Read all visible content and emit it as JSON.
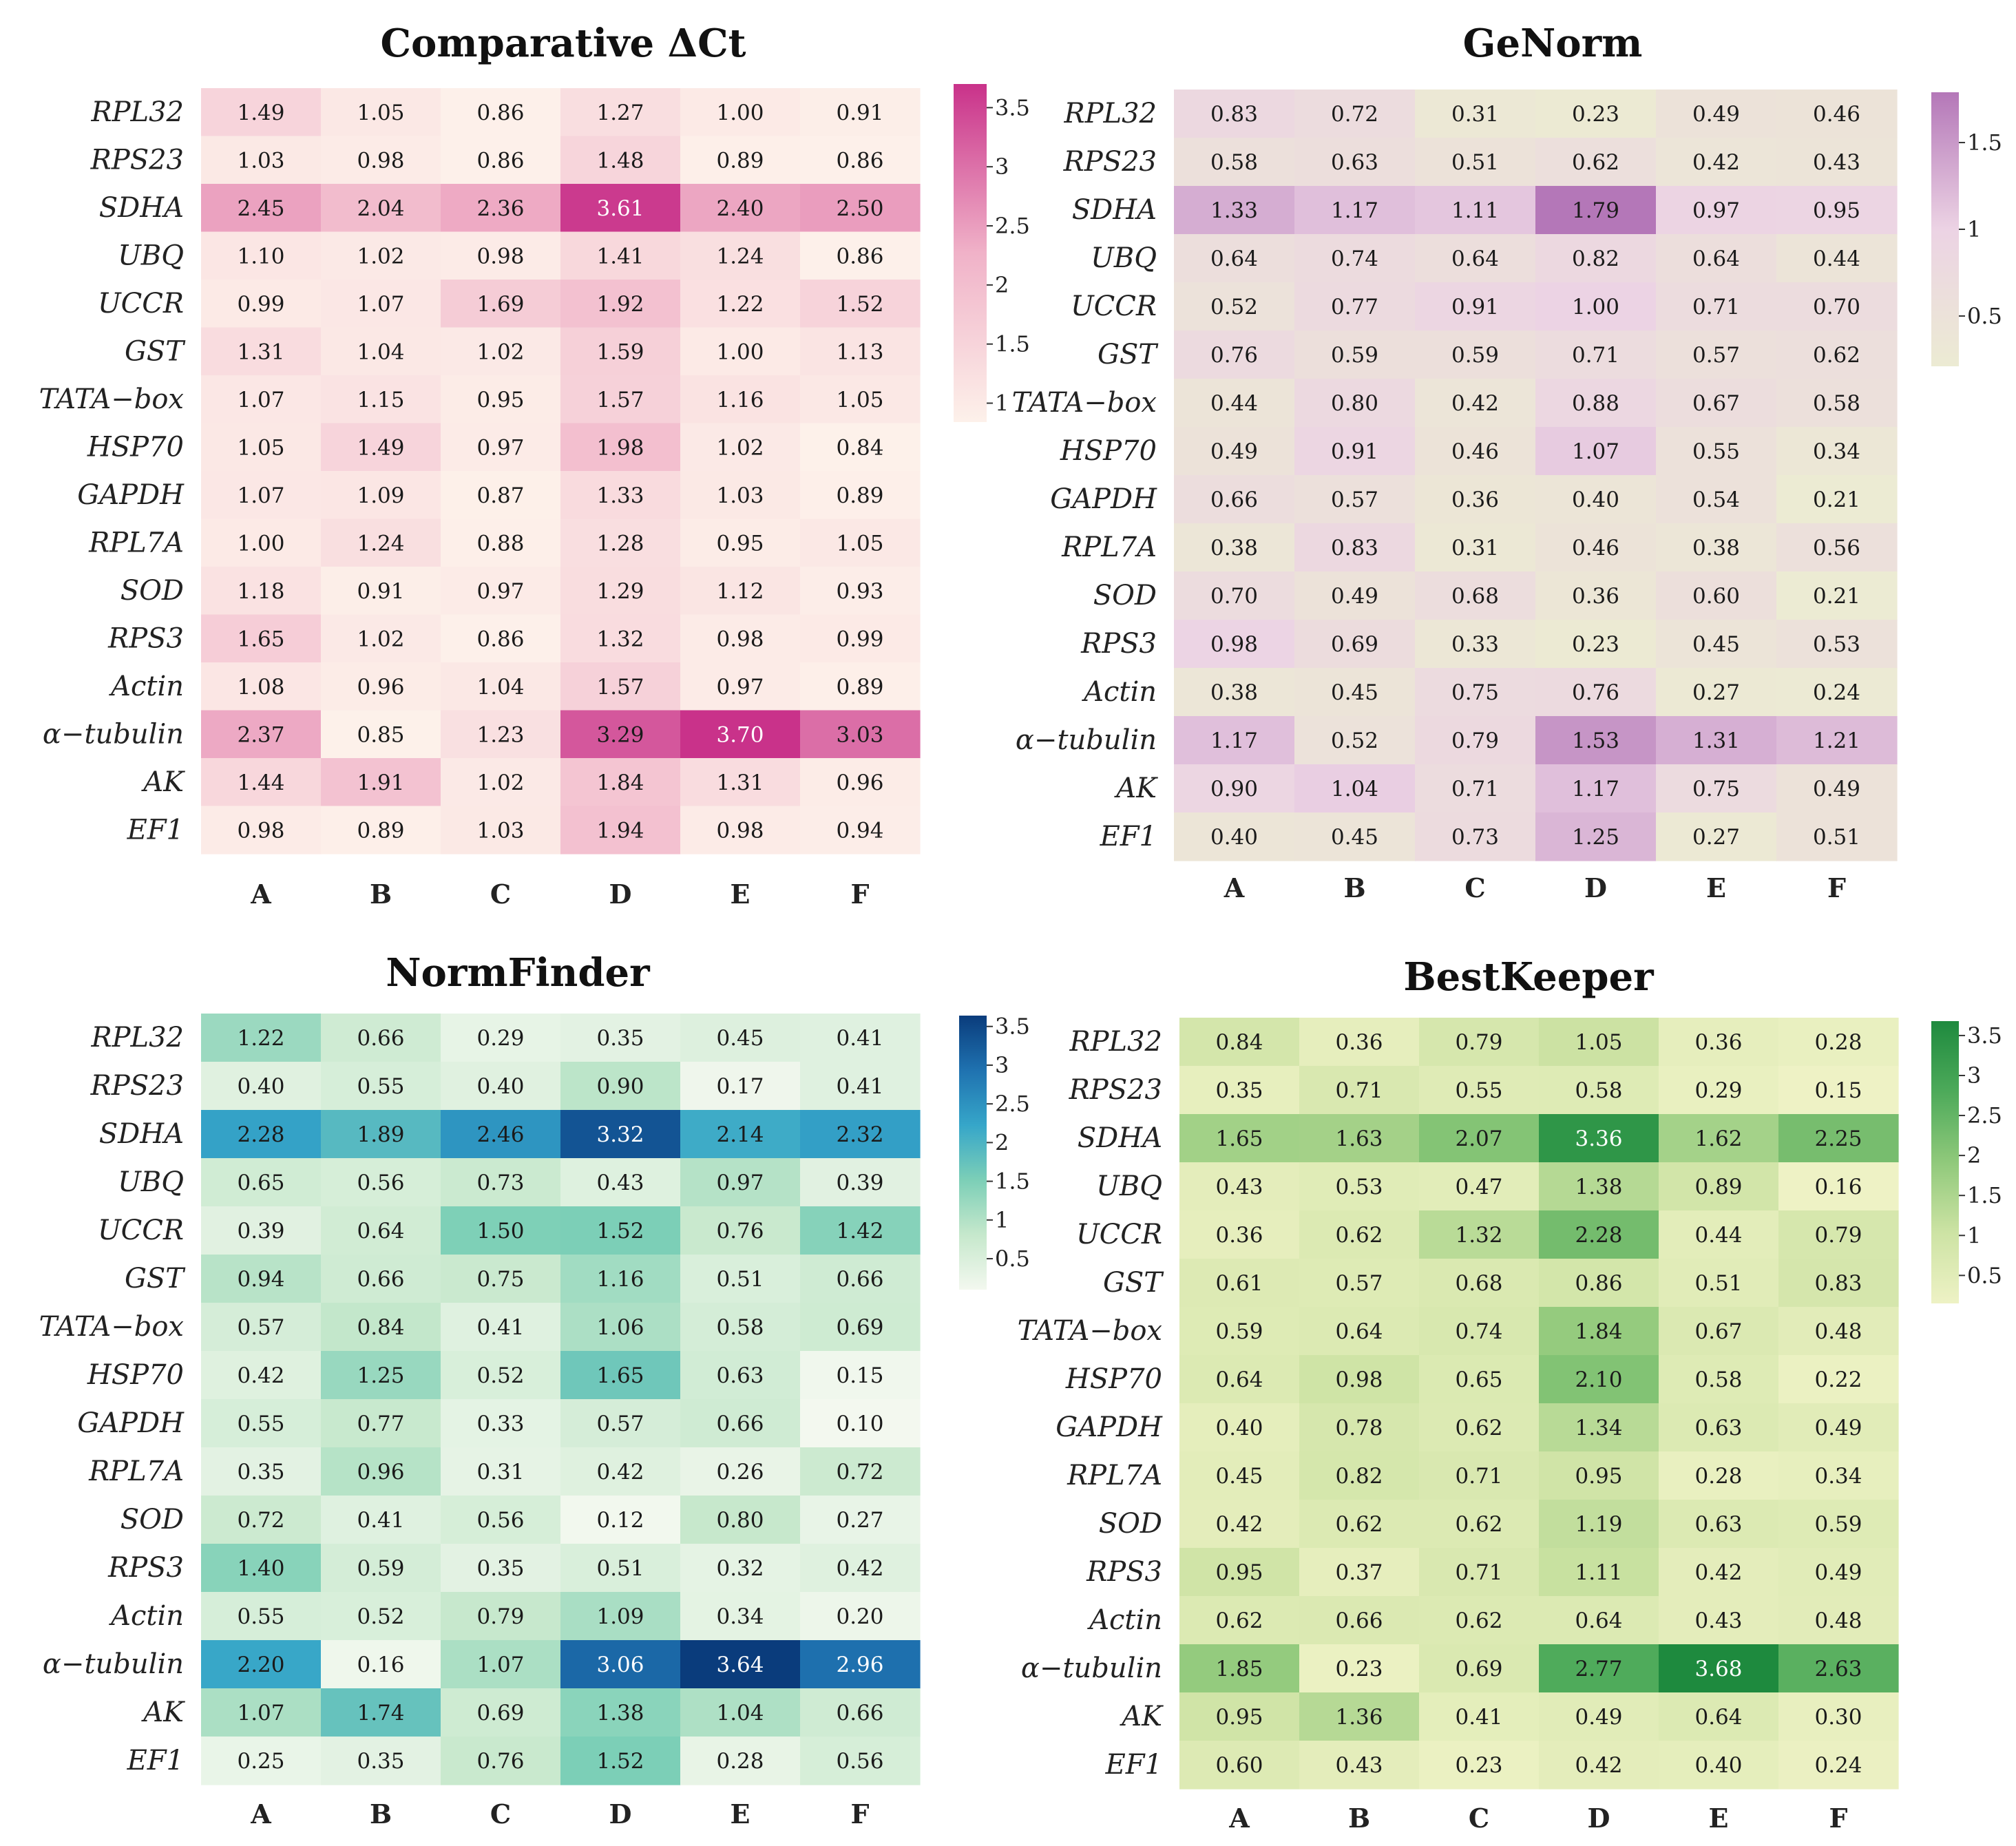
{
  "chart_data": [
    {
      "type": "heatmap",
      "title": "Comparative ΔCt",
      "columns": [
        "A",
        "B",
        "C",
        "D",
        "E",
        "F"
      ],
      "rows": [
        "RPL32",
        "RPS23",
        "SDHA",
        "UBQ",
        "UCCR",
        "GST",
        "TATA−box",
        "HSP70",
        "GAPDH",
        "RPL7A",
        "SOD",
        "RPS3",
        "Actin",
        "α−tubulin",
        "AK",
        "EF1"
      ],
      "values": [
        [
          1.49,
          1.05,
          0.86,
          1.27,
          1.0,
          0.91
        ],
        [
          1.03,
          0.98,
          0.86,
          1.48,
          0.89,
          0.86
        ],
        [
          2.45,
          2.04,
          2.36,
          3.61,
          2.4,
          2.5
        ],
        [
          1.1,
          1.02,
          0.98,
          1.41,
          1.24,
          0.86
        ],
        [
          0.99,
          1.07,
          1.69,
          1.92,
          1.22,
          1.52
        ],
        [
          1.31,
          1.04,
          1.02,
          1.59,
          1.0,
          1.13
        ],
        [
          1.07,
          1.15,
          0.95,
          1.57,
          1.16,
          1.05
        ],
        [
          1.05,
          1.49,
          0.97,
          1.98,
          1.02,
          0.84
        ],
        [
          1.07,
          1.09,
          0.87,
          1.33,
          1.03,
          0.89
        ],
        [
          1.0,
          1.24,
          0.88,
          1.28,
          0.95,
          1.05
        ],
        [
          1.18,
          0.91,
          0.97,
          1.29,
          1.12,
          0.93
        ],
        [
          1.65,
          1.02,
          0.86,
          1.32,
          0.98,
          0.99
        ],
        [
          1.08,
          0.96,
          1.04,
          1.57,
          0.97,
          0.89
        ],
        [
          2.37,
          0.85,
          1.23,
          3.29,
          3.7,
          3.03
        ],
        [
          1.44,
          1.91,
          1.02,
          1.84,
          1.31,
          0.96
        ],
        [
          0.98,
          0.89,
          1.03,
          1.94,
          0.98,
          0.94
        ]
      ],
      "vmin": 0.84,
      "vmax": 3.7,
      "colorbar_ticks": [
        "1",
        "1.5",
        "2",
        "2.5",
        "3",
        "3.5"
      ],
      "colorbar_tick_values": [
        1,
        1.5,
        2,
        2.5,
        3,
        3.5
      ],
      "colors": [
        "#fdf1ea",
        "#f0b2c8",
        "#c9328a"
      ]
    },
    {
      "type": "heatmap",
      "title": "GeNorm",
      "columns": [
        "A",
        "B",
        "C",
        "D",
        "E",
        "F"
      ],
      "rows": [
        "RPL32",
        "RPS23",
        "SDHA",
        "UBQ",
        "UCCR",
        "GST",
        "TATA−box",
        "HSP70",
        "GAPDH",
        "RPL7A",
        "SOD",
        "RPS3",
        "Actin",
        "α−tubulin",
        "AK",
        "EF1"
      ],
      "values": [
        [
          0.83,
          0.72,
          0.31,
          0.23,
          0.49,
          0.46
        ],
        [
          0.58,
          0.63,
          0.51,
          0.62,
          0.42,
          0.43
        ],
        [
          1.33,
          1.17,
          1.11,
          1.79,
          0.97,
          0.95
        ],
        [
          0.64,
          0.74,
          0.64,
          0.82,
          0.64,
          0.44
        ],
        [
          0.52,
          0.77,
          0.91,
          1.0,
          0.71,
          0.7
        ],
        [
          0.76,
          0.59,
          0.59,
          0.71,
          0.57,
          0.62
        ],
        [
          0.44,
          0.8,
          0.42,
          0.88,
          0.67,
          0.58
        ],
        [
          0.49,
          0.91,
          0.46,
          1.07,
          0.55,
          0.34
        ],
        [
          0.66,
          0.57,
          0.36,
          0.4,
          0.54,
          0.21
        ],
        [
          0.38,
          0.83,
          0.31,
          0.46,
          0.38,
          0.56
        ],
        [
          0.7,
          0.49,
          0.68,
          0.36,
          0.6,
          0.21
        ],
        [
          0.98,
          0.69,
          0.33,
          0.23,
          0.45,
          0.53
        ],
        [
          0.38,
          0.45,
          0.75,
          0.76,
          0.27,
          0.24
        ],
        [
          1.17,
          0.52,
          0.79,
          1.53,
          1.31,
          1.21
        ],
        [
          0.9,
          1.04,
          0.71,
          1.17,
          0.75,
          0.49
        ],
        [
          0.4,
          0.45,
          0.73,
          1.25,
          0.27,
          0.51
        ]
      ],
      "vmin": 0.21,
      "vmax": 1.79,
      "colorbar_ticks": [
        "0.5",
        "1",
        "1.5"
      ],
      "colorbar_tick_values": [
        0.5,
        1,
        1.5
      ],
      "colors": [
        "#ecebd3",
        "#ecd3e4",
        "#b477b8"
      ]
    },
    {
      "type": "heatmap",
      "title": "NormFinder",
      "columns": [
        "A",
        "B",
        "C",
        "D",
        "E",
        "F"
      ],
      "rows": [
        "RPL32",
        "RPS23",
        "SDHA",
        "UBQ",
        "UCCR",
        "GST",
        "TATA−box",
        "HSP70",
        "GAPDH",
        "RPL7A",
        "SOD",
        "RPS3",
        "Actin",
        "α−tubulin",
        "AK",
        "EF1"
      ],
      "values": [
        [
          1.22,
          0.66,
          0.29,
          0.35,
          0.45,
          0.41
        ],
        [
          0.4,
          0.55,
          0.4,
          0.9,
          0.17,
          0.41
        ],
        [
          2.28,
          1.89,
          2.46,
          3.32,
          2.14,
          2.32
        ],
        [
          0.65,
          0.56,
          0.73,
          0.43,
          0.97,
          0.39
        ],
        [
          0.39,
          0.64,
          1.5,
          1.52,
          0.76,
          1.42
        ],
        [
          0.94,
          0.66,
          0.75,
          1.16,
          0.51,
          0.66
        ],
        [
          0.57,
          0.84,
          0.41,
          1.06,
          0.58,
          0.69
        ],
        [
          0.42,
          1.25,
          0.52,
          1.65,
          0.63,
          0.15
        ],
        [
          0.55,
          0.77,
          0.33,
          0.57,
          0.66,
          0.1
        ],
        [
          0.35,
          0.96,
          0.31,
          0.42,
          0.26,
          0.72
        ],
        [
          0.72,
          0.41,
          0.56,
          0.12,
          0.8,
          0.27
        ],
        [
          1.4,
          0.59,
          0.35,
          0.51,
          0.32,
          0.42
        ],
        [
          0.55,
          0.52,
          0.79,
          1.09,
          0.34,
          0.2
        ],
        [
          2.2,
          0.16,
          1.07,
          3.06,
          3.64,
          2.96
        ],
        [
          1.07,
          1.74,
          0.69,
          1.38,
          1.04,
          0.66
        ],
        [
          0.25,
          0.35,
          0.76,
          1.52,
          0.28,
          0.56
        ]
      ],
      "vmin": 0.1,
      "vmax": 3.64,
      "colorbar_ticks": [
        "0.5",
        "1",
        "1.5",
        "2",
        "2.5",
        "3",
        "3.5"
      ],
      "colorbar_tick_values": [
        0.5,
        1,
        1.5,
        2,
        2.5,
        3,
        3.5
      ],
      "colors": [
        "#f3f8ef",
        "#c6e8cc",
        "#7ccfb7",
        "#36a6c9",
        "#1f72b0",
        "#0a3c7c"
      ]
    },
    {
      "type": "heatmap",
      "title": "BestKeeper",
      "columns": [
        "A",
        "B",
        "C",
        "D",
        "E",
        "F"
      ],
      "rows": [
        "RPL32",
        "RPS23",
        "SDHA",
        "UBQ",
        "UCCR",
        "GST",
        "TATA−box",
        "HSP70",
        "GAPDH",
        "RPL7A",
        "SOD",
        "RPS3",
        "Actin",
        "α−tubulin",
        "AK",
        "EF1"
      ],
      "values": [
        [
          0.84,
          0.36,
          0.79,
          1.05,
          0.36,
          0.28
        ],
        [
          0.35,
          0.71,
          0.55,
          0.58,
          0.29,
          0.15
        ],
        [
          1.65,
          1.63,
          2.07,
          3.36,
          1.62,
          2.25
        ],
        [
          0.43,
          0.53,
          0.47,
          1.38,
          0.89,
          0.16
        ],
        [
          0.36,
          0.62,
          1.32,
          2.28,
          0.44,
          0.79
        ],
        [
          0.61,
          0.57,
          0.68,
          0.86,
          0.51,
          0.83
        ],
        [
          0.59,
          0.64,
          0.74,
          1.84,
          0.67,
          0.48
        ],
        [
          0.64,
          0.98,
          0.65,
          2.1,
          0.58,
          0.22
        ],
        [
          0.4,
          0.78,
          0.62,
          1.34,
          0.63,
          0.49
        ],
        [
          0.45,
          0.82,
          0.71,
          0.95,
          0.28,
          0.34
        ],
        [
          0.42,
          0.62,
          0.62,
          1.19,
          0.63,
          0.59
        ],
        [
          0.95,
          0.37,
          0.71,
          1.11,
          0.42,
          0.49
        ],
        [
          0.62,
          0.66,
          0.62,
          0.64,
          0.43,
          0.48
        ],
        [
          1.85,
          0.23,
          0.69,
          2.77,
          3.68,
          2.63
        ],
        [
          0.95,
          1.36,
          0.41,
          0.49,
          0.64,
          0.3
        ],
        [
          0.6,
          0.43,
          0.23,
          0.42,
          0.4,
          0.24
        ]
      ],
      "vmin": 0.15,
      "vmax": 3.68,
      "colorbar_ticks": [
        "0.5",
        "1",
        "1.5",
        "2",
        "2.5",
        "3",
        "3.5"
      ],
      "colorbar_tick_values": [
        0.5,
        1,
        1.5,
        2,
        2.5,
        3,
        3.5
      ],
      "colors": [
        "#eef2c5",
        "#cde3a4",
        "#90c97b",
        "#4daa5a",
        "#1e8a3e"
      ]
    }
  ]
}
